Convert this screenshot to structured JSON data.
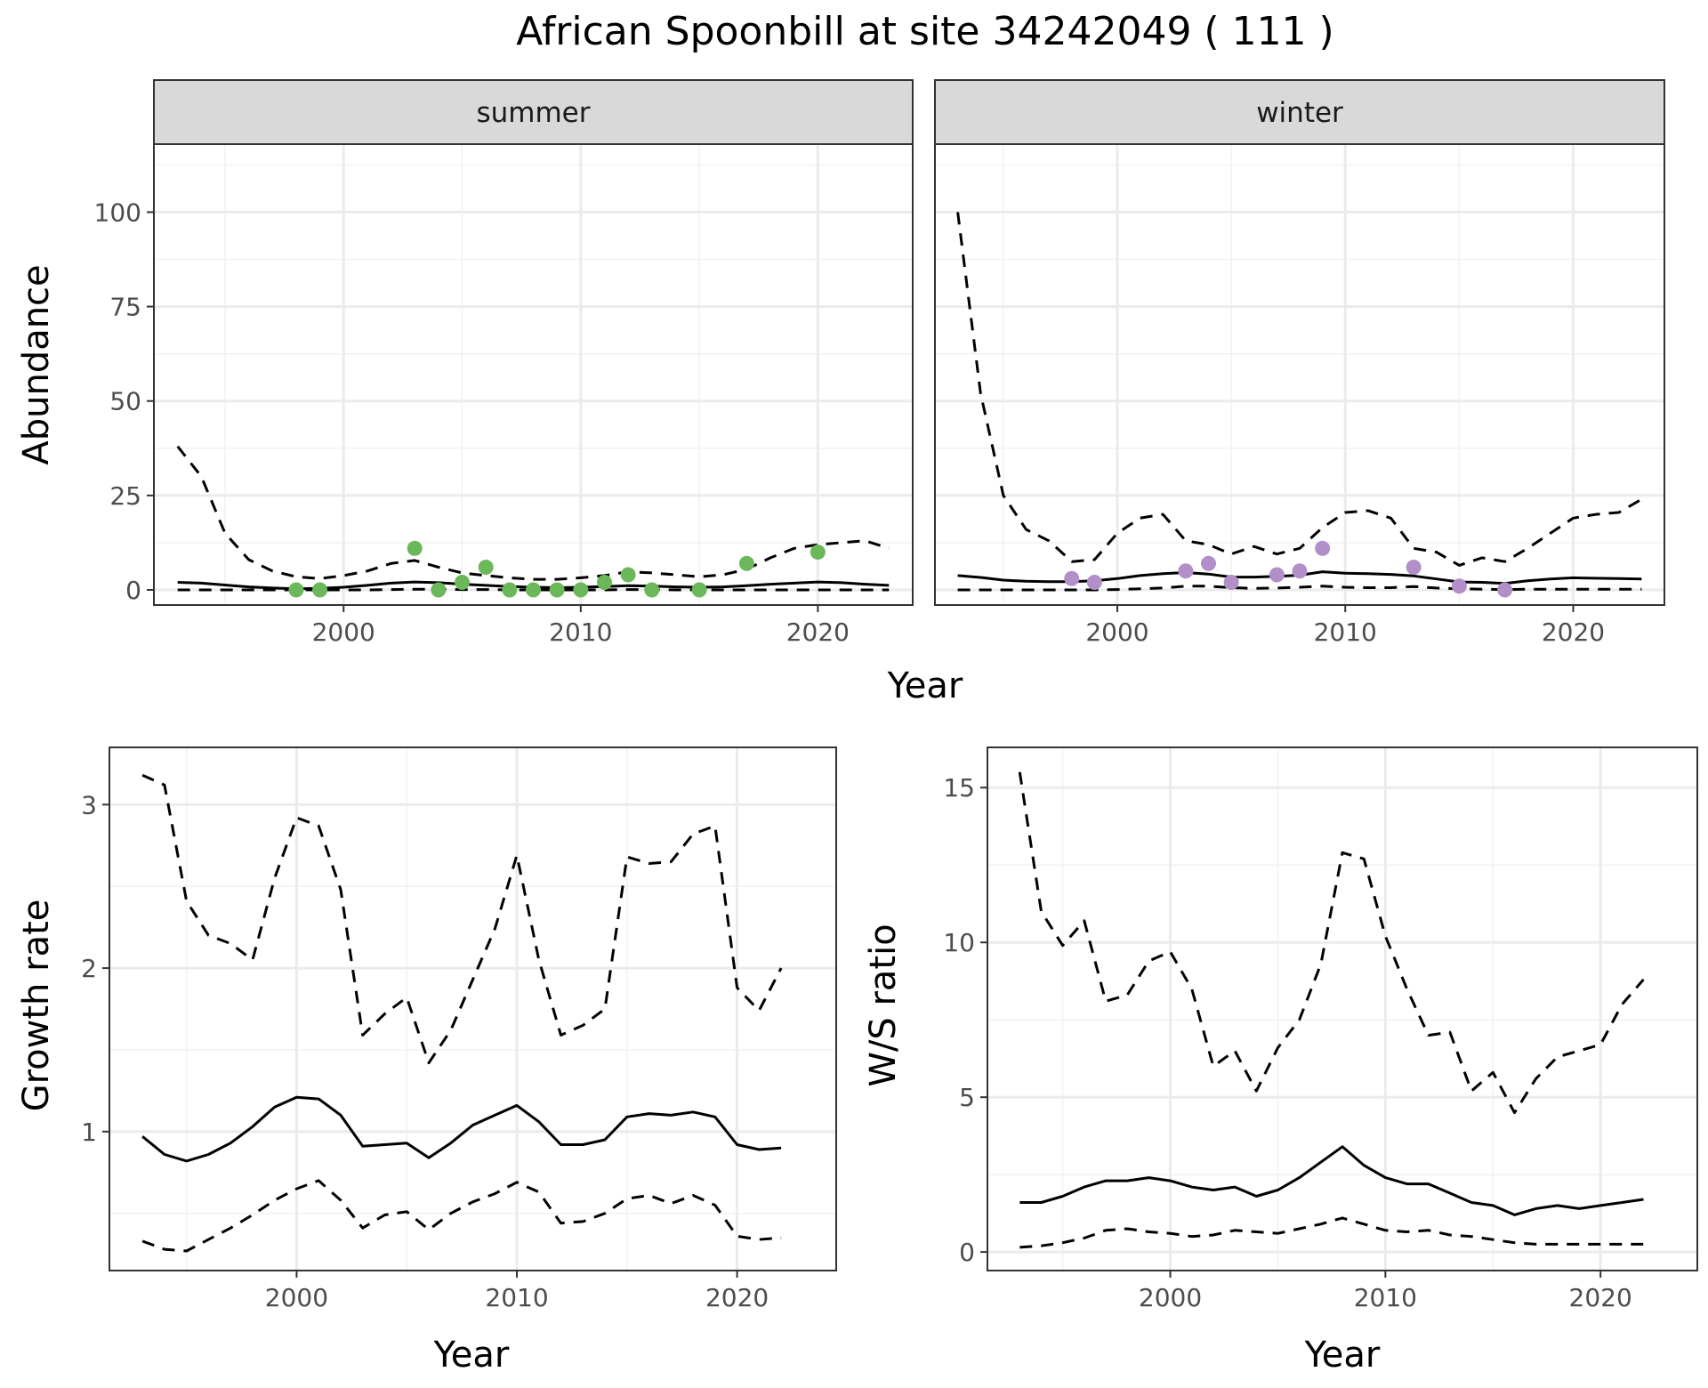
{
  "chart_data": [
    {
      "type": "line",
      "title": "African Spoonbill at site 34242049 ( 111 )",
      "xlabel": "Year",
      "ylabel": "Abundance",
      "xlim": [
        1992,
        2024
      ],
      "ylim": [
        -4,
        118
      ],
      "x_ticks": [
        2000,
        2010,
        2020
      ],
      "y_ticks": [
        0,
        25,
        50,
        75,
        100
      ],
      "grid": true,
      "facets": [
        {
          "strip": "summer",
          "point_color": "#6ab85a",
          "x": [
            1993,
            1994,
            1995,
            1996,
            1997,
            1998,
            1999,
            2000,
            2001,
            2002,
            2003,
            2004,
            2005,
            2006,
            2007,
            2008,
            2009,
            2010,
            2011,
            2012,
            2013,
            2014,
            2015,
            2016,
            2017,
            2018,
            2019,
            2020,
            2021,
            2022,
            2023
          ],
          "estimate": [
            2,
            1.8,
            1.3,
            0.8,
            0.5,
            0.3,
            0.4,
            0.7,
            1.2,
            1.8,
            2.1,
            1.9,
            1.5,
            1.2,
            0.9,
            0.7,
            0.6,
            0.7,
            0.9,
            1.1,
            1.0,
            0.8,
            0.7,
            0.8,
            1.1,
            1.5,
            1.8,
            2.1,
            1.9,
            1.5,
            1.2
          ],
          "lower": [
            0,
            0,
            0,
            0,
            0,
            0,
            0,
            0,
            0,
            0.1,
            0.2,
            0.2,
            0.1,
            0.1,
            0,
            0,
            0,
            0,
            0,
            0.1,
            0.1,
            0,
            0,
            0,
            0,
            0,
            0,
            0,
            0,
            0,
            0
          ],
          "upper": [
            38,
            30,
            15,
            8,
            5,
            3.5,
            3,
            3.8,
            5,
            7,
            7.8,
            6,
            4.5,
            3.8,
            3.2,
            2.8,
            2.8,
            3.2,
            3.8,
            4.8,
            4.5,
            4.0,
            3.5,
            4.0,
            5.5,
            8.5,
            11,
            12,
            12.5,
            13,
            11
          ],
          "points_x": [
            1998,
            1999,
            2003,
            2004,
            2005,
            2006,
            2007,
            2008,
            2009,
            2010,
            2011,
            2012,
            2013,
            2015,
            2017,
            2020
          ],
          "points_y": [
            0,
            0,
            11,
            0,
            2,
            6,
            0,
            0,
            0,
            0,
            2,
            4,
            0,
            0,
            7,
            10
          ]
        },
        {
          "strip": "winter",
          "point_color": "#b28fc9",
          "x": [
            1993,
            1994,
            1995,
            1996,
            1997,
            1998,
            1999,
            2000,
            2001,
            2002,
            2003,
            2004,
            2005,
            2006,
            2007,
            2008,
            2009,
            2010,
            2011,
            2012,
            2013,
            2014,
            2015,
            2016,
            2017,
            2018,
            2019,
            2020,
            2021,
            2022,
            2023
          ],
          "estimate": [
            3.8,
            3.3,
            2.6,
            2.3,
            2.2,
            2.2,
            2.4,
            3.0,
            3.8,
            4.3,
            4.6,
            4.2,
            3.4,
            3.4,
            3.6,
            3.9,
            4.8,
            4.4,
            4.3,
            4.1,
            3.7,
            2.9,
            2.1,
            2.0,
            1.7,
            2.4,
            2.9,
            3.2,
            3.1,
            3.0,
            2.9
          ],
          "lower": [
            0,
            0,
            0,
            0,
            0,
            0,
            0,
            0.1,
            0.3,
            0.5,
            1.0,
            1.0,
            0.6,
            0.4,
            0.5,
            0.7,
            1.0,
            0.7,
            0.6,
            0.6,
            0.9,
            0.5,
            0.3,
            0.2,
            0.1,
            0.2,
            0.2,
            0.2,
            0.2,
            0.2,
            0.2
          ],
          "upper": [
            100,
            52,
            25,
            16,
            13,
            7.5,
            8,
            15,
            19,
            20,
            13,
            12,
            9.5,
            11.5,
            9.5,
            11,
            16.5,
            20.5,
            21,
            19,
            11,
            10,
            6.5,
            8.5,
            7.5,
            11,
            15,
            19,
            20,
            20.5,
            24
          ],
          "points_x": [
            1998,
            1999,
            2003,
            2004,
            2005,
            2007,
            2008,
            2009,
            2013,
            2015,
            2017
          ],
          "points_y": [
            3,
            2,
            5,
            7,
            2,
            4,
            5,
            11,
            6,
            1,
            0
          ]
        }
      ]
    },
    {
      "type": "line",
      "xlabel": "Year",
      "ylabel": "Growth rate",
      "xlim": [
        1991.5,
        2024.5
      ],
      "ylim": [
        0.15,
        3.35
      ],
      "x_ticks": [
        2000,
        2010,
        2020
      ],
      "y_ticks": [
        1,
        2,
        3
      ],
      "grid": true,
      "x": [
        1993,
        1994,
        1995,
        1996,
        1997,
        1998,
        1999,
        2000,
        2001,
        2002,
        2003,
        2004,
        2005,
        2006,
        2007,
        2008,
        2009,
        2010,
        2011,
        2012,
        2013,
        2014,
        2015,
        2016,
        2017,
        2018,
        2019,
        2020,
        2021,
        2022
      ],
      "estimate": [
        0.97,
        0.86,
        0.82,
        0.86,
        0.93,
        1.03,
        1.15,
        1.21,
        1.2,
        1.1,
        0.91,
        0.92,
        0.93,
        0.84,
        0.93,
        1.04,
        1.1,
        1.16,
        1.06,
        0.92,
        0.92,
        0.95,
        1.09,
        1.11,
        1.1,
        1.12,
        1.09,
        0.92,
        0.89,
        0.9
      ],
      "lower": [
        0.33,
        0.28,
        0.27,
        0.34,
        0.41,
        0.49,
        0.58,
        0.65,
        0.7,
        0.58,
        0.41,
        0.49,
        0.51,
        0.4,
        0.5,
        0.57,
        0.62,
        0.69,
        0.63,
        0.44,
        0.45,
        0.5,
        0.59,
        0.61,
        0.56,
        0.61,
        0.55,
        0.36,
        0.34,
        0.35
      ],
      "upper": [
        3.18,
        3.12,
        2.41,
        2.2,
        2.15,
        2.05,
        2.55,
        2.92,
        2.87,
        2.48,
        1.59,
        1.72,
        1.82,
        1.42,
        1.62,
        1.93,
        2.24,
        2.69,
        2.05,
        1.59,
        1.65,
        1.75,
        2.68,
        2.64,
        2.65,
        2.82,
        2.87,
        1.88,
        1.74,
        2.0
      ]
    },
    {
      "type": "line",
      "xlabel": "Year",
      "ylabel": "W/S ratio",
      "xlim": [
        1991.5,
        2024.5
      ],
      "ylim": [
        -0.6,
        16.3
      ],
      "x_ticks": [
        2000,
        2010,
        2020
      ],
      "y_ticks": [
        0,
        5,
        10,
        15
      ],
      "grid": true,
      "x": [
        1993,
        1994,
        1995,
        1996,
        1997,
        1998,
        1999,
        2000,
        2001,
        2002,
        2003,
        2004,
        2005,
        2006,
        2007,
        2008,
        2009,
        2010,
        2011,
        2012,
        2013,
        2014,
        2015,
        2016,
        2017,
        2018,
        2019,
        2020,
        2021,
        2022
      ],
      "estimate": [
        1.6,
        1.6,
        1.8,
        2.1,
        2.3,
        2.3,
        2.4,
        2.3,
        2.1,
        2.0,
        2.1,
        1.8,
        2.0,
        2.4,
        2.9,
        3.4,
        2.8,
        2.4,
        2.2,
        2.2,
        1.9,
        1.6,
        1.5,
        1.2,
        1.4,
        1.5,
        1.4,
        1.5,
        1.6,
        1.7
      ],
      "lower": [
        0.15,
        0.2,
        0.3,
        0.45,
        0.7,
        0.75,
        0.65,
        0.6,
        0.5,
        0.55,
        0.7,
        0.65,
        0.6,
        0.75,
        0.9,
        1.1,
        0.9,
        0.7,
        0.65,
        0.7,
        0.55,
        0.5,
        0.4,
        0.3,
        0.25,
        0.25,
        0.25,
        0.25,
        0.25,
        0.25
      ],
      "upper": [
        15.5,
        11,
        9.9,
        10.7,
        8.1,
        8.3,
        9.4,
        9.7,
        8.5,
        6.0,
        6.5,
        5.2,
        6.6,
        7.5,
        9.3,
        12.9,
        12.7,
        10.2,
        8.5,
        7.0,
        7.1,
        5.2,
        5.8,
        4.5,
        5.6,
        6.3,
        6.5,
        6.7,
        8.0,
        8.8
      ]
    }
  ]
}
